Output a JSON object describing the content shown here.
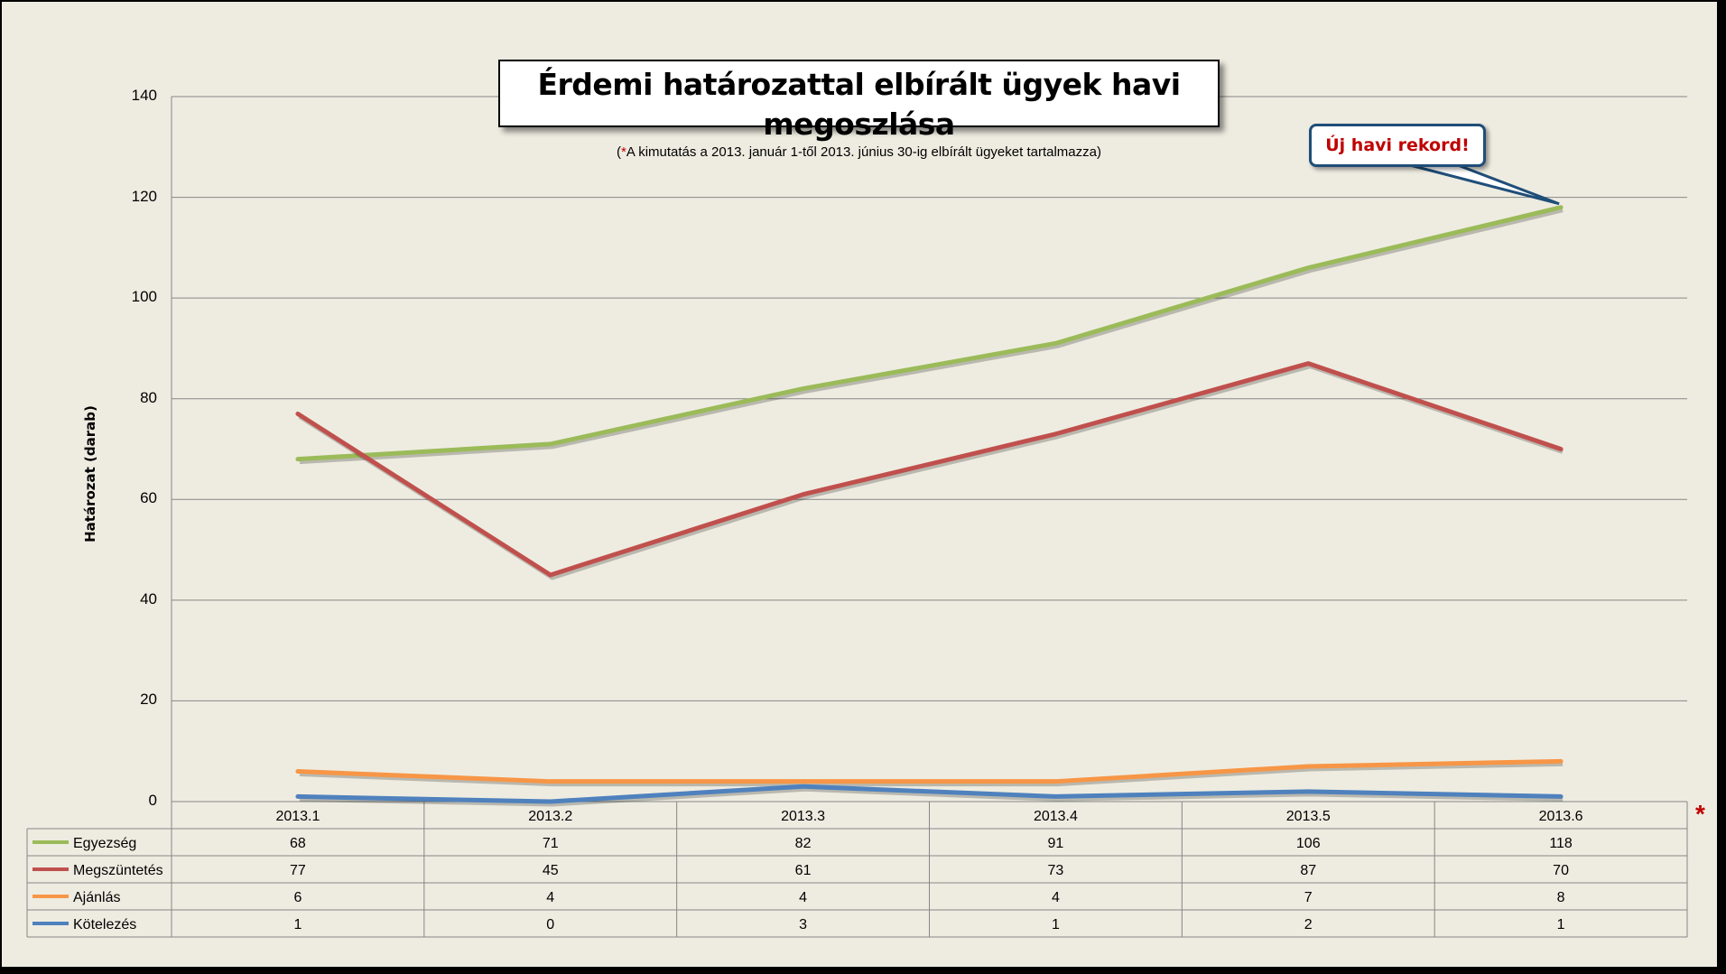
{
  "chart_data": {
    "type": "line",
    "title": "Érdemi határozattal elbírált ügyek havi megoszlása",
    "subtitle_star": "*",
    "subtitle": "A kimutatás a 2013. január 1-től 2013. június 30-ig elbírált ügyeket tartalmazza",
    "ylabel": "Határozat (darab)",
    "xlabel": "",
    "ylim": [
      0,
      140
    ],
    "yticks": [
      "0",
      "20",
      "40",
      "60",
      "80",
      "100",
      "120",
      "140"
    ],
    "categories": [
      "2013.1",
      "2013.2",
      "2013.3",
      "2013.4",
      "2013.5",
      "2013.6"
    ],
    "grid": true,
    "legend": "data-table-left",
    "series": [
      {
        "name": "Egyezség",
        "color": "#9BBB59",
        "values": [
          68,
          71,
          82,
          91,
          106,
          118
        ]
      },
      {
        "name": "Megszüntetés",
        "color": "#C0504D",
        "values": [
          77,
          45,
          61,
          73,
          87,
          70
        ]
      },
      {
        "name": "Ajánlás",
        "color": "#F79646",
        "values": [
          6,
          4,
          4,
          4,
          7,
          8
        ]
      },
      {
        "name": "Kötelezés",
        "color": "#4F81BD",
        "values": [
          1,
          0,
          3,
          1,
          2,
          1
        ]
      }
    ],
    "annotation": {
      "text": "Új havi rekord!",
      "series": "Egyezség",
      "category": "2013.6"
    },
    "table_note": "*"
  },
  "colors": {
    "background": "#EEECE1",
    "callout_border": "#1F4E79",
    "callout_text": "#C00000"
  }
}
